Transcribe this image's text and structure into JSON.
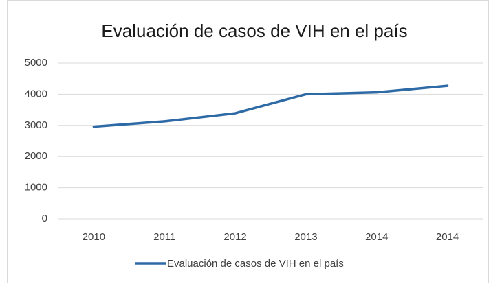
{
  "chart_data": {
    "type": "line",
    "title": "Evaluación de casos de VIH en el país",
    "categories": [
      "2010",
      "2011",
      "2012",
      "2013",
      "2014",
      "2014"
    ],
    "series": [
      {
        "name": "Evaluación de casos de VIH en el país",
        "color": "#2e6aa6",
        "values": [
          2960,
          3130,
          3390,
          4000,
          4060,
          4270
        ]
      }
    ],
    "ylim": [
      0,
      5000
    ],
    "yticks": [
      0,
      1000,
      2000,
      3000,
      4000,
      5000
    ],
    "grid": true,
    "legend": "bottom"
  }
}
